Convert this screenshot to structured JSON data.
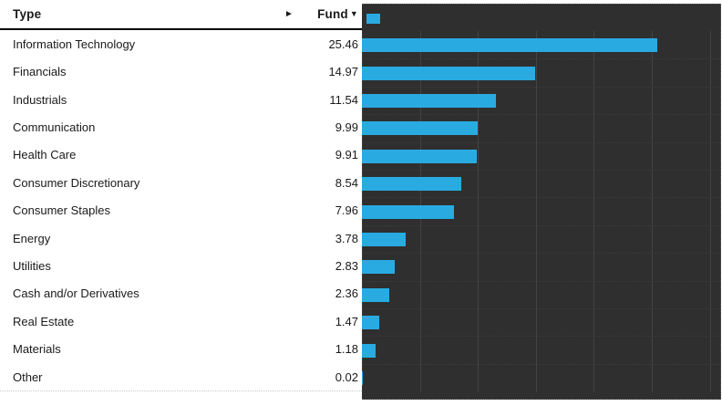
{
  "header": {
    "type_label": "Type",
    "expand_icon": "►",
    "fund_label": "Fund",
    "sort_icon": "▼"
  },
  "rows": [
    {
      "label": "Information Technology",
      "value": "25.46"
    },
    {
      "label": "Financials",
      "value": "14.97"
    },
    {
      "label": "Industrials",
      "value": "11.54"
    },
    {
      "label": "Communication",
      "value": "9.99"
    },
    {
      "label": "Health Care",
      "value": "9.91"
    },
    {
      "label": "Consumer Discretionary",
      "value": "8.54"
    },
    {
      "label": "Consumer Staples",
      "value": "7.96"
    },
    {
      "label": "Energy",
      "value": "3.78"
    },
    {
      "label": "Utilities",
      "value": "2.83"
    },
    {
      "label": "Cash and/or Derivatives",
      "value": "2.36"
    },
    {
      "label": "Real Estate",
      "value": "1.47"
    },
    {
      "label": "Materials",
      "value": "1.18"
    },
    {
      "label": "Other",
      "value": "0.02"
    }
  ],
  "chart_data": {
    "type": "bar",
    "orientation": "horizontal",
    "series_name": "Fund",
    "categories": [
      "Information Technology",
      "Financials",
      "Industrials",
      "Communication",
      "Health Care",
      "Consumer Discretionary",
      "Consumer Staples",
      "Energy",
      "Utilities",
      "Cash and/or Derivatives",
      "Real Estate",
      "Materials",
      "Other"
    ],
    "values": [
      25.46,
      14.97,
      11.54,
      9.99,
      9.91,
      8.54,
      7.96,
      3.78,
      2.83,
      2.36,
      1.47,
      1.18,
      0.02
    ],
    "xlim": [
      0,
      30.9
    ],
    "gridlines": [
      5,
      10,
      15,
      20,
      25,
      30
    ],
    "grid": true,
    "legend_position": "top-left",
    "bar_color": "#29abe2",
    "background_color": "#2f2f2f",
    "gridline_color": "#434343"
  },
  "colors": {
    "accent": "#29abe2",
    "chart_background": "#2f2f2f",
    "text": "#1a1a1a",
    "header_border": "#000000",
    "separator": "#c9c9c9"
  }
}
